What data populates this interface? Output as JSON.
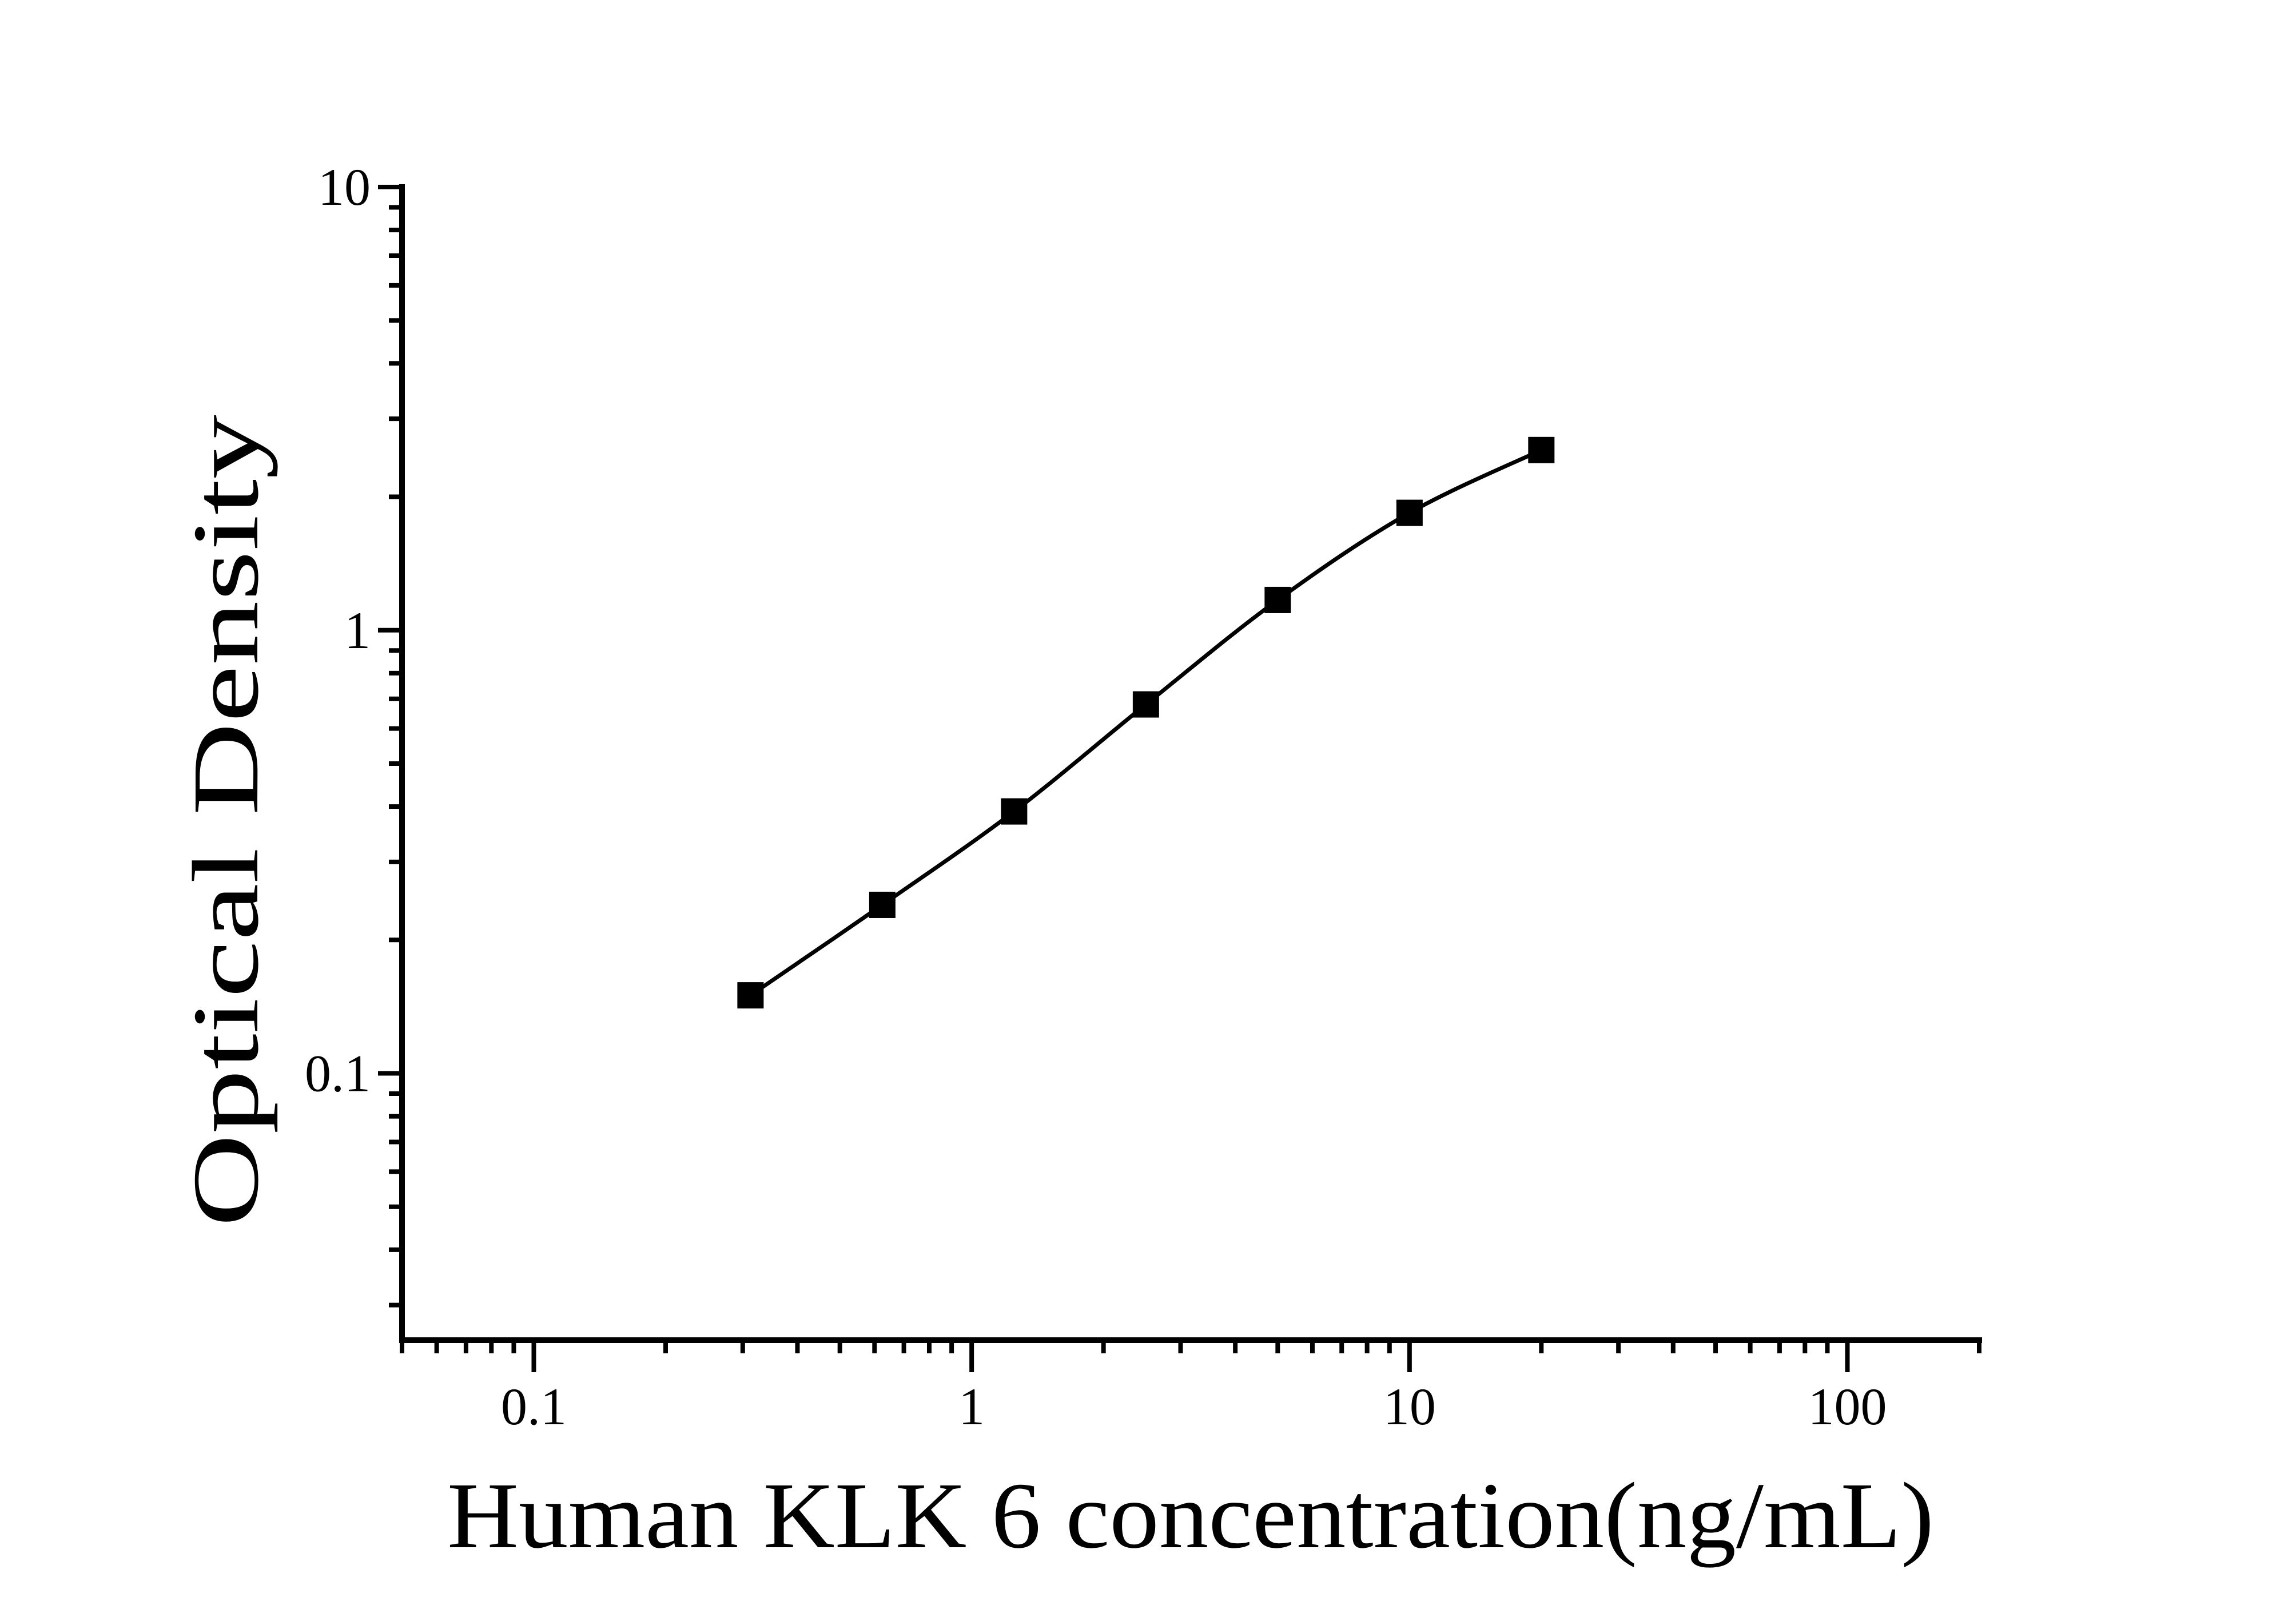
{
  "figure": {
    "background": "#ffffff",
    "ink_color": "#000000"
  },
  "chart_data": {
    "type": "line",
    "title": "",
    "xlabel": "Human KLK 6 concentration(ng/mL)",
    "ylabel": "Optical Density",
    "x_scale": "log",
    "y_scale": "log",
    "xlim": [
      0.05,
      200
    ],
    "ylim": [
      0.025,
      10
    ],
    "x_major_ticks": [
      0.1,
      1,
      10,
      100
    ],
    "x_tick_labels": [
      "0.1",
      "1",
      "10",
      "100"
    ],
    "y_major_ticks": [
      0.1,
      1,
      10
    ],
    "y_tick_labels": [
      "0.1",
      "1",
      "10"
    ],
    "grid": false,
    "legend": null,
    "marker": "filled-square",
    "line_style": "smooth",
    "series": [
      {
        "name": "standard-curve",
        "x": [
          0.3125,
          0.625,
          1.25,
          2.5,
          5,
          10,
          20
        ],
        "y": [
          0.15,
          0.24,
          0.39,
          0.68,
          1.17,
          1.84,
          2.55
        ]
      }
    ]
  }
}
